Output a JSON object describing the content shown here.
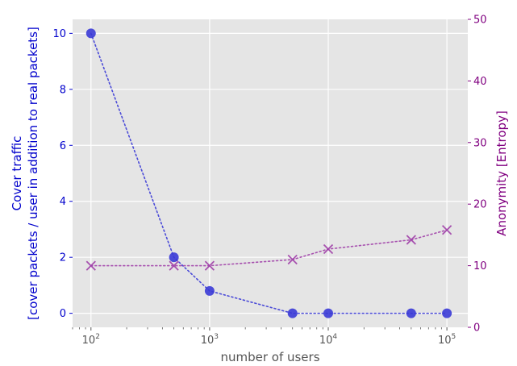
{
  "chart_data": {
    "type": "scatter",
    "title": "",
    "xlabel": "number of users",
    "x_scale": "log",
    "xlim": [
      70,
      150000
    ],
    "x_ticks": [
      100,
      1000,
      10000,
      100000
    ],
    "x_tick_labels": [
      {
        "base": "10",
        "exp": "2"
      },
      {
        "base": "10",
        "exp": "3"
      },
      {
        "base": "10",
        "exp": "4"
      },
      {
        "base": "10",
        "exp": "5"
      }
    ],
    "ylabel_left": [
      "Cover traffic",
      "[cover packets / user in addition to real packets]"
    ],
    "ylim_left": [
      -0.5,
      10.5
    ],
    "y_ticks_left": [
      0,
      2,
      4,
      6,
      8,
      10
    ],
    "ylabel_right": "Anonymity [Entropy]",
    "ylim_right": [
      0,
      50
    ],
    "y_ticks_right": [
      0,
      10,
      20,
      30,
      40,
      50
    ],
    "grid": true,
    "background": "#e5e5e5",
    "series": [
      {
        "axis": "left",
        "marker": "circle",
        "line": "dotted",
        "color": "#3a3ad6",
        "x": [
          100,
          500,
          1000,
          5000,
          10000,
          50000,
          100000
        ],
        "y": [
          10,
          2,
          0.8,
          0,
          0,
          0,
          0
        ]
      },
      {
        "axis": "right",
        "marker": "x",
        "line": "dotted",
        "color": "#a040a8",
        "x": [
          100,
          500,
          1000,
          5000,
          10000,
          50000,
          100000
        ],
        "y": [
          10,
          10,
          10,
          11,
          12.7,
          14.2,
          15.8
        ]
      }
    ],
    "colors": {
      "left_axis": "#0000cc",
      "right_axis": "#800080",
      "tick_label": "#555555",
      "xlabel": "#555555"
    }
  }
}
